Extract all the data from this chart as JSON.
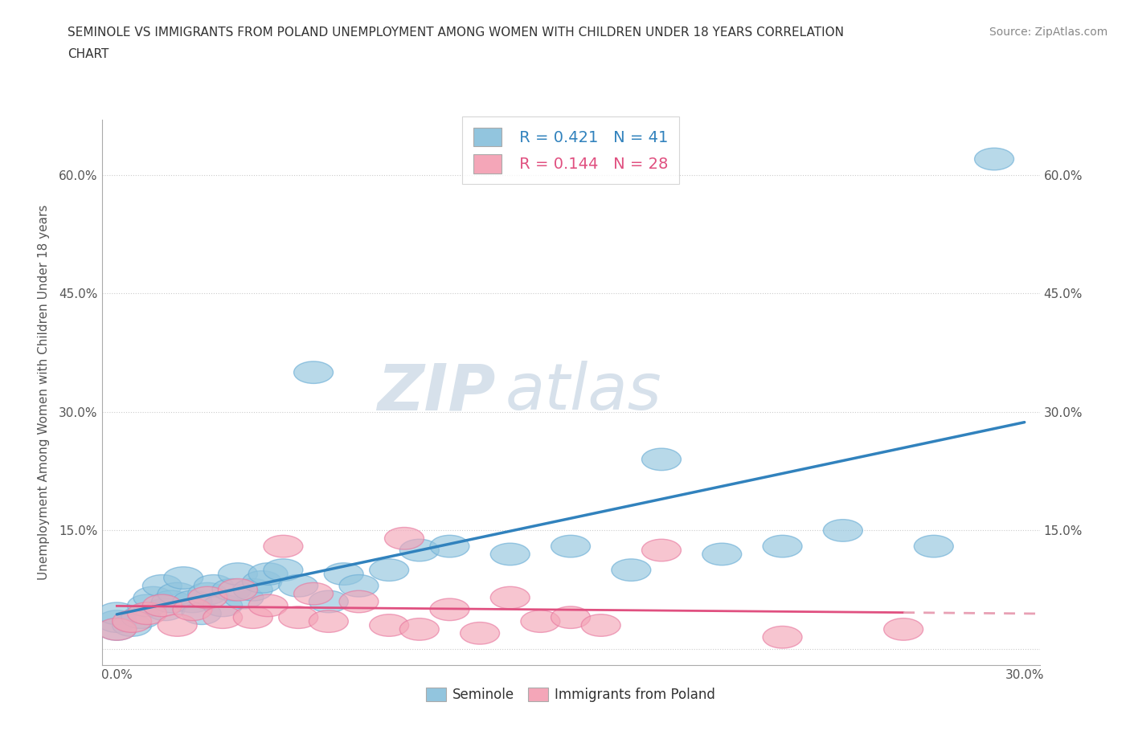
{
  "title_line1": "SEMINOLE VS IMMIGRANTS FROM POLAND UNEMPLOYMENT AMONG WOMEN WITH CHILDREN UNDER 18 YEARS CORRELATION",
  "title_line2": "CHART",
  "source_text": "Source: ZipAtlas.com",
  "ylabel": "Unemployment Among Women with Children Under 18 years",
  "xlim": [
    -0.005,
    0.305
  ],
  "ylim": [
    -0.02,
    0.67
  ],
  "xticks": [
    0.0,
    0.05,
    0.1,
    0.15,
    0.2,
    0.25,
    0.3
  ],
  "xtick_labels": [
    "0.0%",
    "",
    "",
    "",
    "",
    "",
    "30.0%"
  ],
  "yticks": [
    0.0,
    0.15,
    0.3,
    0.45,
    0.6
  ],
  "ytick_labels": [
    "",
    "15.0%",
    "30.0%",
    "45.0%",
    "60.0%"
  ],
  "seminole_color": "#92c5de",
  "poland_color": "#f4a6b8",
  "seminole_edge_color": "#6baed6",
  "poland_edge_color": "#e879a0",
  "seminole_line_color": "#3182bd",
  "poland_line_color": "#e05080",
  "poland_line_dash_color": "#e8a0b4",
  "legend_R1": "0.421",
  "legend_N1": "41",
  "legend_R2": "0.144",
  "legend_N2": "28",
  "legend_label1": "Seminole",
  "legend_label2": "Immigrants from Poland",
  "seminole_x": [
    0.0,
    0.0,
    0.0,
    0.005,
    0.008,
    0.01,
    0.012,
    0.015,
    0.016,
    0.018,
    0.02,
    0.022,
    0.025,
    0.028,
    0.03,
    0.032,
    0.035,
    0.038,
    0.04,
    0.042,
    0.045,
    0.048,
    0.05,
    0.055,
    0.06,
    0.065,
    0.07,
    0.075,
    0.08,
    0.09,
    0.1,
    0.11,
    0.13,
    0.15,
    0.17,
    0.18,
    0.2,
    0.22,
    0.24,
    0.27,
    0.29
  ],
  "seminole_y": [
    0.025,
    0.035,
    0.045,
    0.03,
    0.04,
    0.055,
    0.065,
    0.08,
    0.05,
    0.06,
    0.07,
    0.09,
    0.06,
    0.045,
    0.07,
    0.08,
    0.055,
    0.075,
    0.095,
    0.065,
    0.075,
    0.085,
    0.095,
    0.1,
    0.08,
    0.35,
    0.06,
    0.095,
    0.08,
    0.1,
    0.125,
    0.13,
    0.12,
    0.13,
    0.1,
    0.24,
    0.12,
    0.13,
    0.15,
    0.13,
    0.62
  ],
  "poland_x": [
    0.0,
    0.005,
    0.01,
    0.015,
    0.02,
    0.025,
    0.03,
    0.035,
    0.04,
    0.045,
    0.05,
    0.055,
    0.06,
    0.065,
    0.07,
    0.08,
    0.09,
    0.095,
    0.1,
    0.11,
    0.12,
    0.13,
    0.14,
    0.15,
    0.16,
    0.18,
    0.22,
    0.26
  ],
  "poland_y": [
    0.025,
    0.035,
    0.045,
    0.055,
    0.03,
    0.05,
    0.065,
    0.04,
    0.075,
    0.04,
    0.055,
    0.13,
    0.04,
    0.07,
    0.035,
    0.06,
    0.03,
    0.14,
    0.025,
    0.05,
    0.02,
    0.065,
    0.035,
    0.04,
    0.03,
    0.125,
    0.015,
    0.025
  ]
}
